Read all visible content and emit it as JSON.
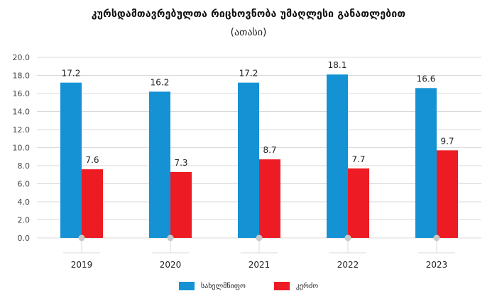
{
  "title": "კურსდამთავრებულთა რიცხოვნობა უმაღლესი განათლებით",
  "subtitle": "(ათასი)",
  "colors": {
    "series1": "#1592d4",
    "series2": "#ed1c24",
    "grid": "#d9d9d9",
    "marker": "#c8c8c8"
  },
  "chart_data": {
    "type": "bar",
    "categories": [
      "2019",
      "2020",
      "2021",
      "2022",
      "2023"
    ],
    "series": [
      {
        "name": "სახელმწიფო",
        "values": [
          17.2,
          16.2,
          17.2,
          18.1,
          16.6
        ]
      },
      {
        "name": "კერძო",
        "values": [
          7.6,
          7.3,
          8.7,
          7.7,
          9.7
        ]
      }
    ],
    "ylim": [
      0,
      20
    ],
    "yticks": [
      "0.0",
      "2.0",
      "4.0",
      "6.0",
      "8.0",
      "10.0",
      "12.0",
      "14.0",
      "16.0",
      "18.0",
      "20.0"
    ],
    "value_labels": [
      [
        "17.2",
        "16.2",
        "17.2",
        "18.1",
        "16.6"
      ],
      [
        "7.6",
        "7.3",
        "8.7",
        "7.7",
        "9.7"
      ]
    ],
    "grid": true,
    "legend_position": "bottom"
  }
}
